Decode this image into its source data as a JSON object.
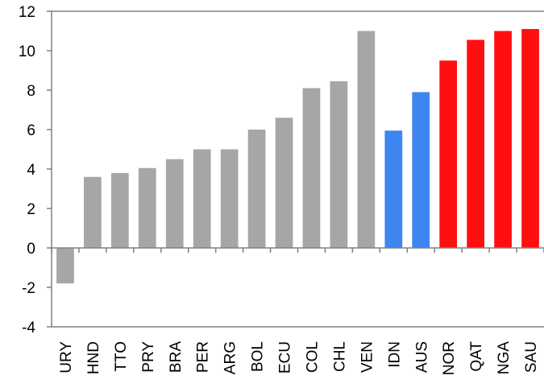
{
  "chart_data": {
    "type": "bar",
    "title": "",
    "xlabel": "",
    "ylabel": "",
    "ylim": [
      -4,
      12
    ],
    "yticks": [
      -4,
      -2,
      0,
      2,
      4,
      6,
      8,
      10,
      12
    ],
    "grid": false,
    "legend": "none",
    "categories": [
      "URY",
      "HND",
      "TTO",
      "PRY",
      "BRA",
      "PER",
      "ARG",
      "BOL",
      "ECU",
      "COL",
      "CHL",
      "VEN",
      "IDN",
      "AUS",
      "NOR",
      "QAT",
      "NGA",
      "SAU"
    ],
    "values": [
      -1.8,
      3.6,
      3.8,
      4.05,
      4.5,
      5.0,
      5.0,
      6.0,
      6.6,
      8.1,
      8.45,
      11.0,
      5.95,
      7.9,
      9.5,
      10.55,
      11.0,
      11.1
    ],
    "bar_colors": [
      "#a6a6a6",
      "#a6a6a6",
      "#a6a6a6",
      "#a6a6a6",
      "#a6a6a6",
      "#a6a6a6",
      "#a6a6a6",
      "#a6a6a6",
      "#a6a6a6",
      "#a6a6a6",
      "#a6a6a6",
      "#a6a6a6",
      "#3d85f0",
      "#3d85f0",
      "#ff0f0f",
      "#ff0f0f",
      "#ff0f0f",
      "#ff0f0f"
    ]
  },
  "colors": {
    "axis": "#808080",
    "text": "#000000"
  }
}
